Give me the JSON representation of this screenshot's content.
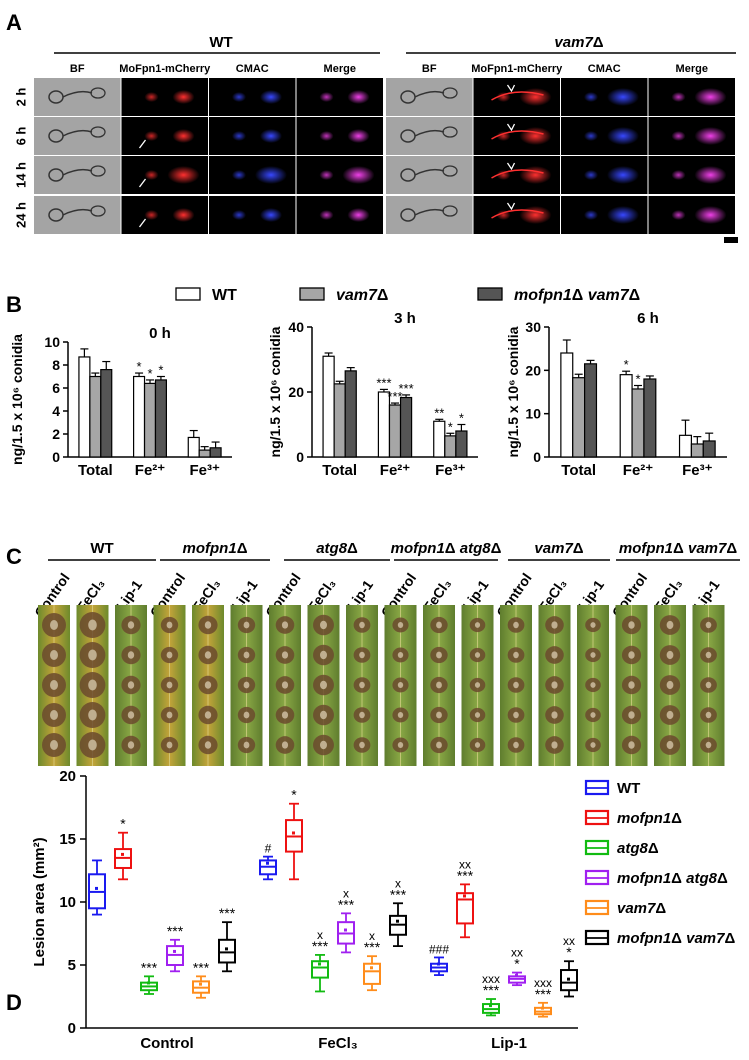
{
  "panel_labels": {
    "A": "A",
    "B": "B",
    "C": "C",
    "D": "D"
  },
  "panelA": {
    "groups": [
      "WT",
      "vam7Δ"
    ],
    "columns": [
      "BF",
      "MoFpn1-mCherry",
      "CMAC",
      "Merge"
    ],
    "rows": [
      "2 h",
      "6 h",
      "14 h",
      "24 h"
    ],
    "colors": {
      "bf": "#9a9a9a",
      "mcherry": "#e01010",
      "cmac": "#2030ff",
      "merge": "#e020d0"
    }
  },
  "panelB": {
    "legend": [
      "WT",
      "vam7Δ",
      "mofpn1Δ vam7Δ"
    ],
    "ylabel": "ng/1.5 x 10⁶ conidia",
    "colors": [
      "#ffffff",
      "#a6a6a6",
      "#555555"
    ]
  },
  "panelC": {
    "strains": [
      "WT",
      "mofpn1Δ",
      "atg8Δ",
      "mofpn1Δ atg8Δ",
      "vam7Δ",
      "mofpn1Δ vam7Δ"
    ],
    "treatments": [
      "Control",
      "FeCl₃",
      "Lip-1"
    ]
  },
  "panelD": {
    "ylabel": "Lesion area (mm²)",
    "legend": [
      "WT",
      "mofpn1Δ",
      "atg8Δ",
      "mofpn1Δ atg8Δ",
      "vam7Δ",
      "mofpn1Δ vam7Δ"
    ],
    "colors": [
      "#1a1af0",
      "#ee1111",
      "#11bb11",
      "#a020f0",
      "#ff8c1a",
      "#000000"
    ]
  },
  "chart_data": [
    {
      "type": "bar",
      "title": "0 h",
      "categories": [
        "Total",
        "Fe²⁺",
        "Fe³⁺"
      ],
      "ylim": [
        0,
        10
      ],
      "yticks": [
        "0",
        "2",
        "4",
        "6",
        "8",
        "10"
      ],
      "series": [
        {
          "name": "WT",
          "values": [
            8.7,
            7.0,
            1.7
          ],
          "errors": [
            0.7,
            0.3,
            0.6
          ]
        },
        {
          "name": "vam7Δ",
          "values": [
            7.0,
            6.4,
            0.6
          ],
          "errors": [
            0.3,
            0.3,
            0.3
          ]
        },
        {
          "name": "mofpn1Δ vam7Δ",
          "values": [
            7.6,
            6.7,
            0.8
          ],
          "errors": [
            0.7,
            0.3,
            0.5
          ]
        }
      ],
      "annotations": [
        [
          "",
          "*",
          ""
        ],
        [
          "",
          "*",
          ""
        ],
        [
          "",
          "*",
          ""
        ]
      ]
    },
    {
      "type": "bar",
      "title": "3 h",
      "categories": [
        "Total",
        "Fe²⁺",
        "Fe³⁺"
      ],
      "ylim": [
        0,
        40
      ],
      "yticks": [
        "0",
        "20",
        "40"
      ],
      "series": [
        {
          "name": "WT",
          "values": [
            31,
            20,
            11
          ],
          "errors": [
            1.0,
            0.8,
            0.6
          ]
        },
        {
          "name": "vam7Δ",
          "values": [
            22.5,
            16,
            6.5
          ],
          "errors": [
            0.8,
            0.6,
            0.8
          ]
        },
        {
          "name": "mofpn1Δ vam7Δ",
          "values": [
            26.5,
            18.3,
            8.0
          ],
          "errors": [
            1.0,
            0.8,
            2.0
          ]
        }
      ],
      "annotations": [
        [
          "",
          "***",
          "**"
        ],
        [
          "",
          "***",
          "*"
        ],
        [
          "",
          "***",
          "*"
        ]
      ]
    },
    {
      "type": "bar",
      "title": "6 h",
      "categories": [
        "Total",
        "Fe²⁺",
        "Fe³⁺"
      ],
      "ylim": [
        0,
        30
      ],
      "yticks": [
        "0",
        "10",
        "20",
        "30"
      ],
      "series": [
        {
          "name": "WT",
          "values": [
            24,
            19,
            5
          ],
          "errors": [
            3.0,
            0.8,
            3.5
          ]
        },
        {
          "name": "vam7Δ",
          "values": [
            18.3,
            15.7,
            3.0
          ],
          "errors": [
            0.8,
            0.8,
            1.7
          ]
        },
        {
          "name": "mofpn1Δ vam7Δ",
          "values": [
            21.5,
            18,
            3.7
          ],
          "errors": [
            0.8,
            0.7,
            1.8
          ]
        }
      ],
      "annotations": [
        [
          "",
          "*",
          ""
        ],
        [
          "",
          "*",
          ""
        ],
        [
          "",
          "",
          ""
        ]
      ]
    },
    {
      "type": "box",
      "categories": [
        "Control",
        "FeCl₃",
        "Lip-1"
      ],
      "ylim": [
        0,
        20
      ],
      "yticks": [
        "0",
        "5",
        "10",
        "15",
        "20"
      ],
      "series": [
        {
          "name": "WT",
          "boxes": [
            [
              9.0,
              9.5,
              10.8,
              12.2,
              13.3
            ],
            [
              11.8,
              12.2,
              12.8,
              13.3,
              13.6
            ],
            [
              4.2,
              4.5,
              4.8,
              5.1,
              5.6
            ]
          ]
        },
        {
          "name": "mofpn1Δ",
          "boxes": [
            [
              11.8,
              12.7,
              13.5,
              14.2,
              15.5
            ],
            [
              11.8,
              14.0,
              15.2,
              16.5,
              17.8
            ],
            [
              7.2,
              8.3,
              10.2,
              10.7,
              11.4
            ]
          ]
        },
        {
          "name": "atg8Δ",
          "boxes": [
            [
              2.7,
              3.0,
              3.3,
              3.6,
              4.1
            ],
            [
              2.9,
              4.0,
              4.8,
              5.3,
              5.8
            ],
            [
              1.0,
              1.2,
              1.5,
              1.9,
              2.3
            ]
          ]
        },
        {
          "name": "mofpn1Δ atg8Δ",
          "boxes": [
            [
              4.5,
              5.0,
              5.8,
              6.5,
              7.0
            ],
            [
              6.0,
              6.7,
              7.5,
              8.4,
              9.1
            ],
            [
              3.4,
              3.6,
              3.9,
              4.1,
              4.4
            ]
          ]
        },
        {
          "name": "vam7Δ",
          "boxes": [
            [
              2.4,
              2.8,
              3.2,
              3.7,
              4.1
            ],
            [
              3.0,
              3.5,
              4.5,
              5.1,
              5.7
            ],
            [
              0.9,
              1.1,
              1.3,
              1.6,
              2.0
            ]
          ]
        },
        {
          "name": "mofpn1Δ vam7Δ",
          "boxes": [
            [
              4.5,
              5.2,
              6.0,
              7.0,
              8.4
            ],
            [
              6.5,
              7.4,
              8.2,
              8.9,
              9.9
            ],
            [
              2.5,
              3.0,
              3.6,
              4.6,
              5.3
            ]
          ]
        }
      ],
      "annotations": [
        [
          "",
          "*",
          "***",
          "***",
          "***",
          "***"
        ],
        [
          "#",
          "*",
          "x\n***",
          "x\n***",
          "x\n***",
          "x\n***"
        ],
        [
          "###",
          "xx\n***",
          "xxx\n***",
          "xx\n*",
          "xxx\n***",
          "xx\n*"
        ]
      ]
    }
  ]
}
